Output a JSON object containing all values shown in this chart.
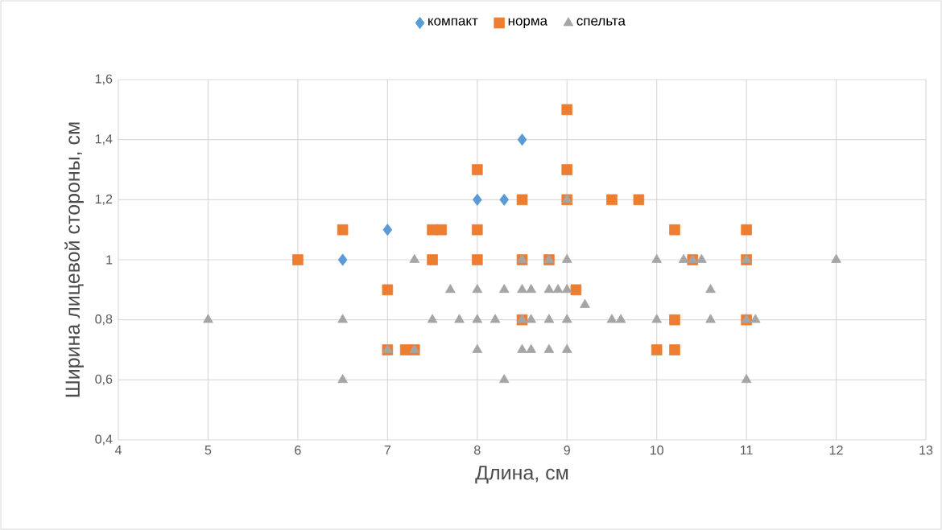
{
  "chart_data": {
    "type": "scatter",
    "xlabel": "Длина, см",
    "ylabel": "Ширина лицевой стороны, см",
    "xlim": [
      4,
      13
    ],
    "xticks": [
      4,
      5,
      6,
      7,
      8,
      9,
      10,
      11,
      12,
      13
    ],
    "ylim": [
      0.4,
      1.6
    ],
    "yticks": [
      {
        "value": 0.4,
        "label": "0,4"
      },
      {
        "value": 0.6,
        "label": "0,6"
      },
      {
        "value": 0.8,
        "label": "0,8"
      },
      {
        "value": 1,
        "label": "1"
      },
      {
        "value": 1.2,
        "label": "1,2"
      },
      {
        "value": 1.4,
        "label": "1,4"
      },
      {
        "value": 1.6,
        "label": "1,6"
      }
    ],
    "grid": true,
    "legend": "top",
    "series": [
      {
        "name": "компакт",
        "color": "#5b9bd5",
        "marker": "diamond",
        "x": [
          6.5,
          7,
          8,
          8.3,
          8.5
        ],
        "values": [
          1.0,
          1.1,
          1.2,
          1.2,
          1.4
        ]
      },
      {
        "name": "норма",
        "color": "#ed7d31",
        "marker": "square",
        "x": [
          6,
          6.5,
          7,
          7,
          7.2,
          7.3,
          7.5,
          7.6,
          7.5,
          8,
          8,
          8,
          8.5,
          8.5,
          8.5,
          8.8,
          9,
          9,
          9,
          9.1,
          9.5,
          9.8,
          10.2,
          10.4,
          10,
          10.2,
          10.2,
          11,
          11,
          11
        ],
        "values": [
          1.0,
          1.1,
          0.9,
          0.7,
          0.7,
          0.7,
          1.1,
          1.1,
          1.0,
          1.3,
          1.1,
          1.0,
          1.2,
          1.0,
          0.8,
          1.0,
          1.5,
          1.3,
          1.2,
          0.9,
          1.2,
          1.2,
          1.1,
          1.0,
          0.7,
          0.7,
          0.8,
          1.1,
          1.0,
          0.8
        ]
      },
      {
        "name": "спельта",
        "color": "#a5a5a5",
        "marker": "triangle",
        "x": [
          5,
          6.5,
          6.5,
          7,
          7.3,
          7.3,
          7.5,
          7.7,
          7.8,
          8,
          8,
          8,
          8.2,
          8.3,
          8.3,
          8.5,
          8.5,
          8.5,
          8.5,
          8.6,
          8.6,
          8.6,
          8.8,
          8.8,
          8.8,
          8.8,
          8.9,
          9,
          9,
          9,
          9,
          9,
          9.2,
          9.5,
          9.6,
          10,
          10,
          10.3,
          10.4,
          10.5,
          10.6,
          10.6,
          11,
          11,
          11.1,
          11,
          12
        ],
        "values": [
          0.8,
          0.8,
          0.6,
          0.7,
          0.7,
          1.0,
          0.8,
          0.9,
          0.8,
          0.9,
          0.8,
          0.7,
          0.8,
          0.9,
          0.6,
          1.0,
          0.9,
          0.8,
          0.7,
          0.9,
          0.8,
          0.7,
          1.0,
          0.9,
          0.8,
          0.7,
          0.9,
          1.2,
          1.0,
          0.9,
          0.8,
          0.7,
          0.85,
          0.8,
          0.8,
          1.0,
          0.8,
          1.0,
          1.0,
          1.0,
          0.9,
          0.8,
          1.0,
          0.8,
          0.8,
          0.6,
          1.0
        ]
      }
    ]
  }
}
